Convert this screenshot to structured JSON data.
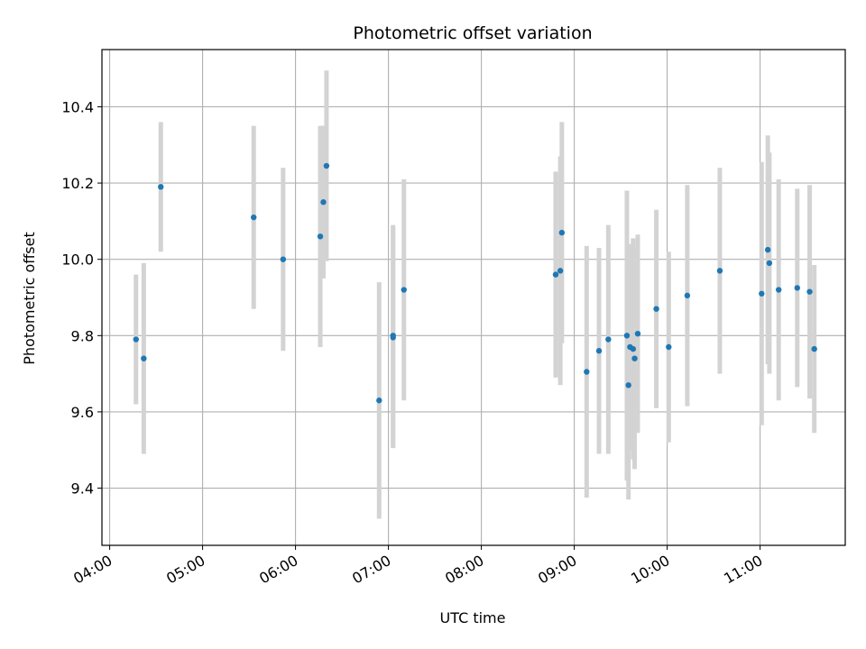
{
  "chart_data": {
    "type": "scatter",
    "title": "Photometric offset variation",
    "xlabel": "UTC time",
    "ylabel": "Photometric offset",
    "x_ticks": [
      "04:00",
      "05:00",
      "06:00",
      "07:00",
      "08:00",
      "09:00",
      "10:00",
      "11:00"
    ],
    "x_tick_minutes": [
      240,
      300,
      360,
      420,
      480,
      540,
      600,
      660
    ],
    "xlim_minutes": [
      235,
      715
    ],
    "y_ticks": [
      "9.4",
      "9.6",
      "9.8",
      "10.0",
      "10.2",
      "10.4"
    ],
    "y_tick_values": [
      9.4,
      9.6,
      9.8,
      10.0,
      10.2,
      10.4
    ],
    "ylim": [
      9.25,
      10.55
    ],
    "grid": true,
    "marker_color": "#1f77b4",
    "errorbar_color": "#d3d3d3",
    "points": [
      {
        "t": "04:17",
        "y": 9.79,
        "err": 0.17
      },
      {
        "t": "04:22",
        "y": 9.74,
        "err": 0.25
      },
      {
        "t": "04:33",
        "y": 10.19,
        "err": 0.17
      },
      {
        "t": "05:33",
        "y": 10.11,
        "err": 0.24
      },
      {
        "t": "05:52",
        "y": 10.0,
        "err": 0.24
      },
      {
        "t": "06:16",
        "y": 10.06,
        "err": 0.29
      },
      {
        "t": "06:18",
        "y": 10.15,
        "err": 0.2
      },
      {
        "t": "06:20",
        "y": 10.245,
        "err": 0.25
      },
      {
        "t": "06:54",
        "y": 9.63,
        "err": 0.31
      },
      {
        "t": "07:03",
        "y": 9.8,
        "err": 0.29
      },
      {
        "t": "07:03",
        "y": 9.795,
        "err": 0.29
      },
      {
        "t": "07:10",
        "y": 9.92,
        "err": 0.29
      },
      {
        "t": "08:48",
        "y": 9.96,
        "err": 0.27
      },
      {
        "t": "08:51",
        "y": 9.97,
        "err": 0.3
      },
      {
        "t": "08:52",
        "y": 10.07,
        "err": 0.29
      },
      {
        "t": "09:08",
        "y": 9.705,
        "err": 0.33
      },
      {
        "t": "09:16",
        "y": 9.76,
        "err": 0.27
      },
      {
        "t": "09:22",
        "y": 9.79,
        "err": 0.3
      },
      {
        "t": "09:34",
        "y": 9.8,
        "err": 0.38
      },
      {
        "t": "09:35",
        "y": 9.67,
        "err": 0.3
      },
      {
        "t": "09:36",
        "y": 9.77,
        "err": 0.27
      },
      {
        "t": "09:38",
        "y": 9.765,
        "err": 0.29
      },
      {
        "t": "09:39",
        "y": 9.74,
        "err": 0.29
      },
      {
        "t": "09:41",
        "y": 9.805,
        "err": 0.26
      },
      {
        "t": "09:53",
        "y": 9.87,
        "err": 0.26
      },
      {
        "t": "10:01",
        "y": 9.77,
        "err": 0.25
      },
      {
        "t": "10:13",
        "y": 9.905,
        "err": 0.29
      },
      {
        "t": "10:34",
        "y": 9.97,
        "err": 0.27
      },
      {
        "t": "11:01",
        "y": 9.91,
        "err": 0.345
      },
      {
        "t": "11:05",
        "y": 10.025,
        "err": 0.3
      },
      {
        "t": "11:06",
        "y": 9.99,
        "err": 0.29
      },
      {
        "t": "11:12",
        "y": 9.92,
        "err": 0.29
      },
      {
        "t": "11:24",
        "y": 9.925,
        "err": 0.26
      },
      {
        "t": "11:32",
        "y": 9.915,
        "err": 0.28
      },
      {
        "t": "11:35",
        "y": 9.765,
        "err": 0.22
      }
    ]
  }
}
